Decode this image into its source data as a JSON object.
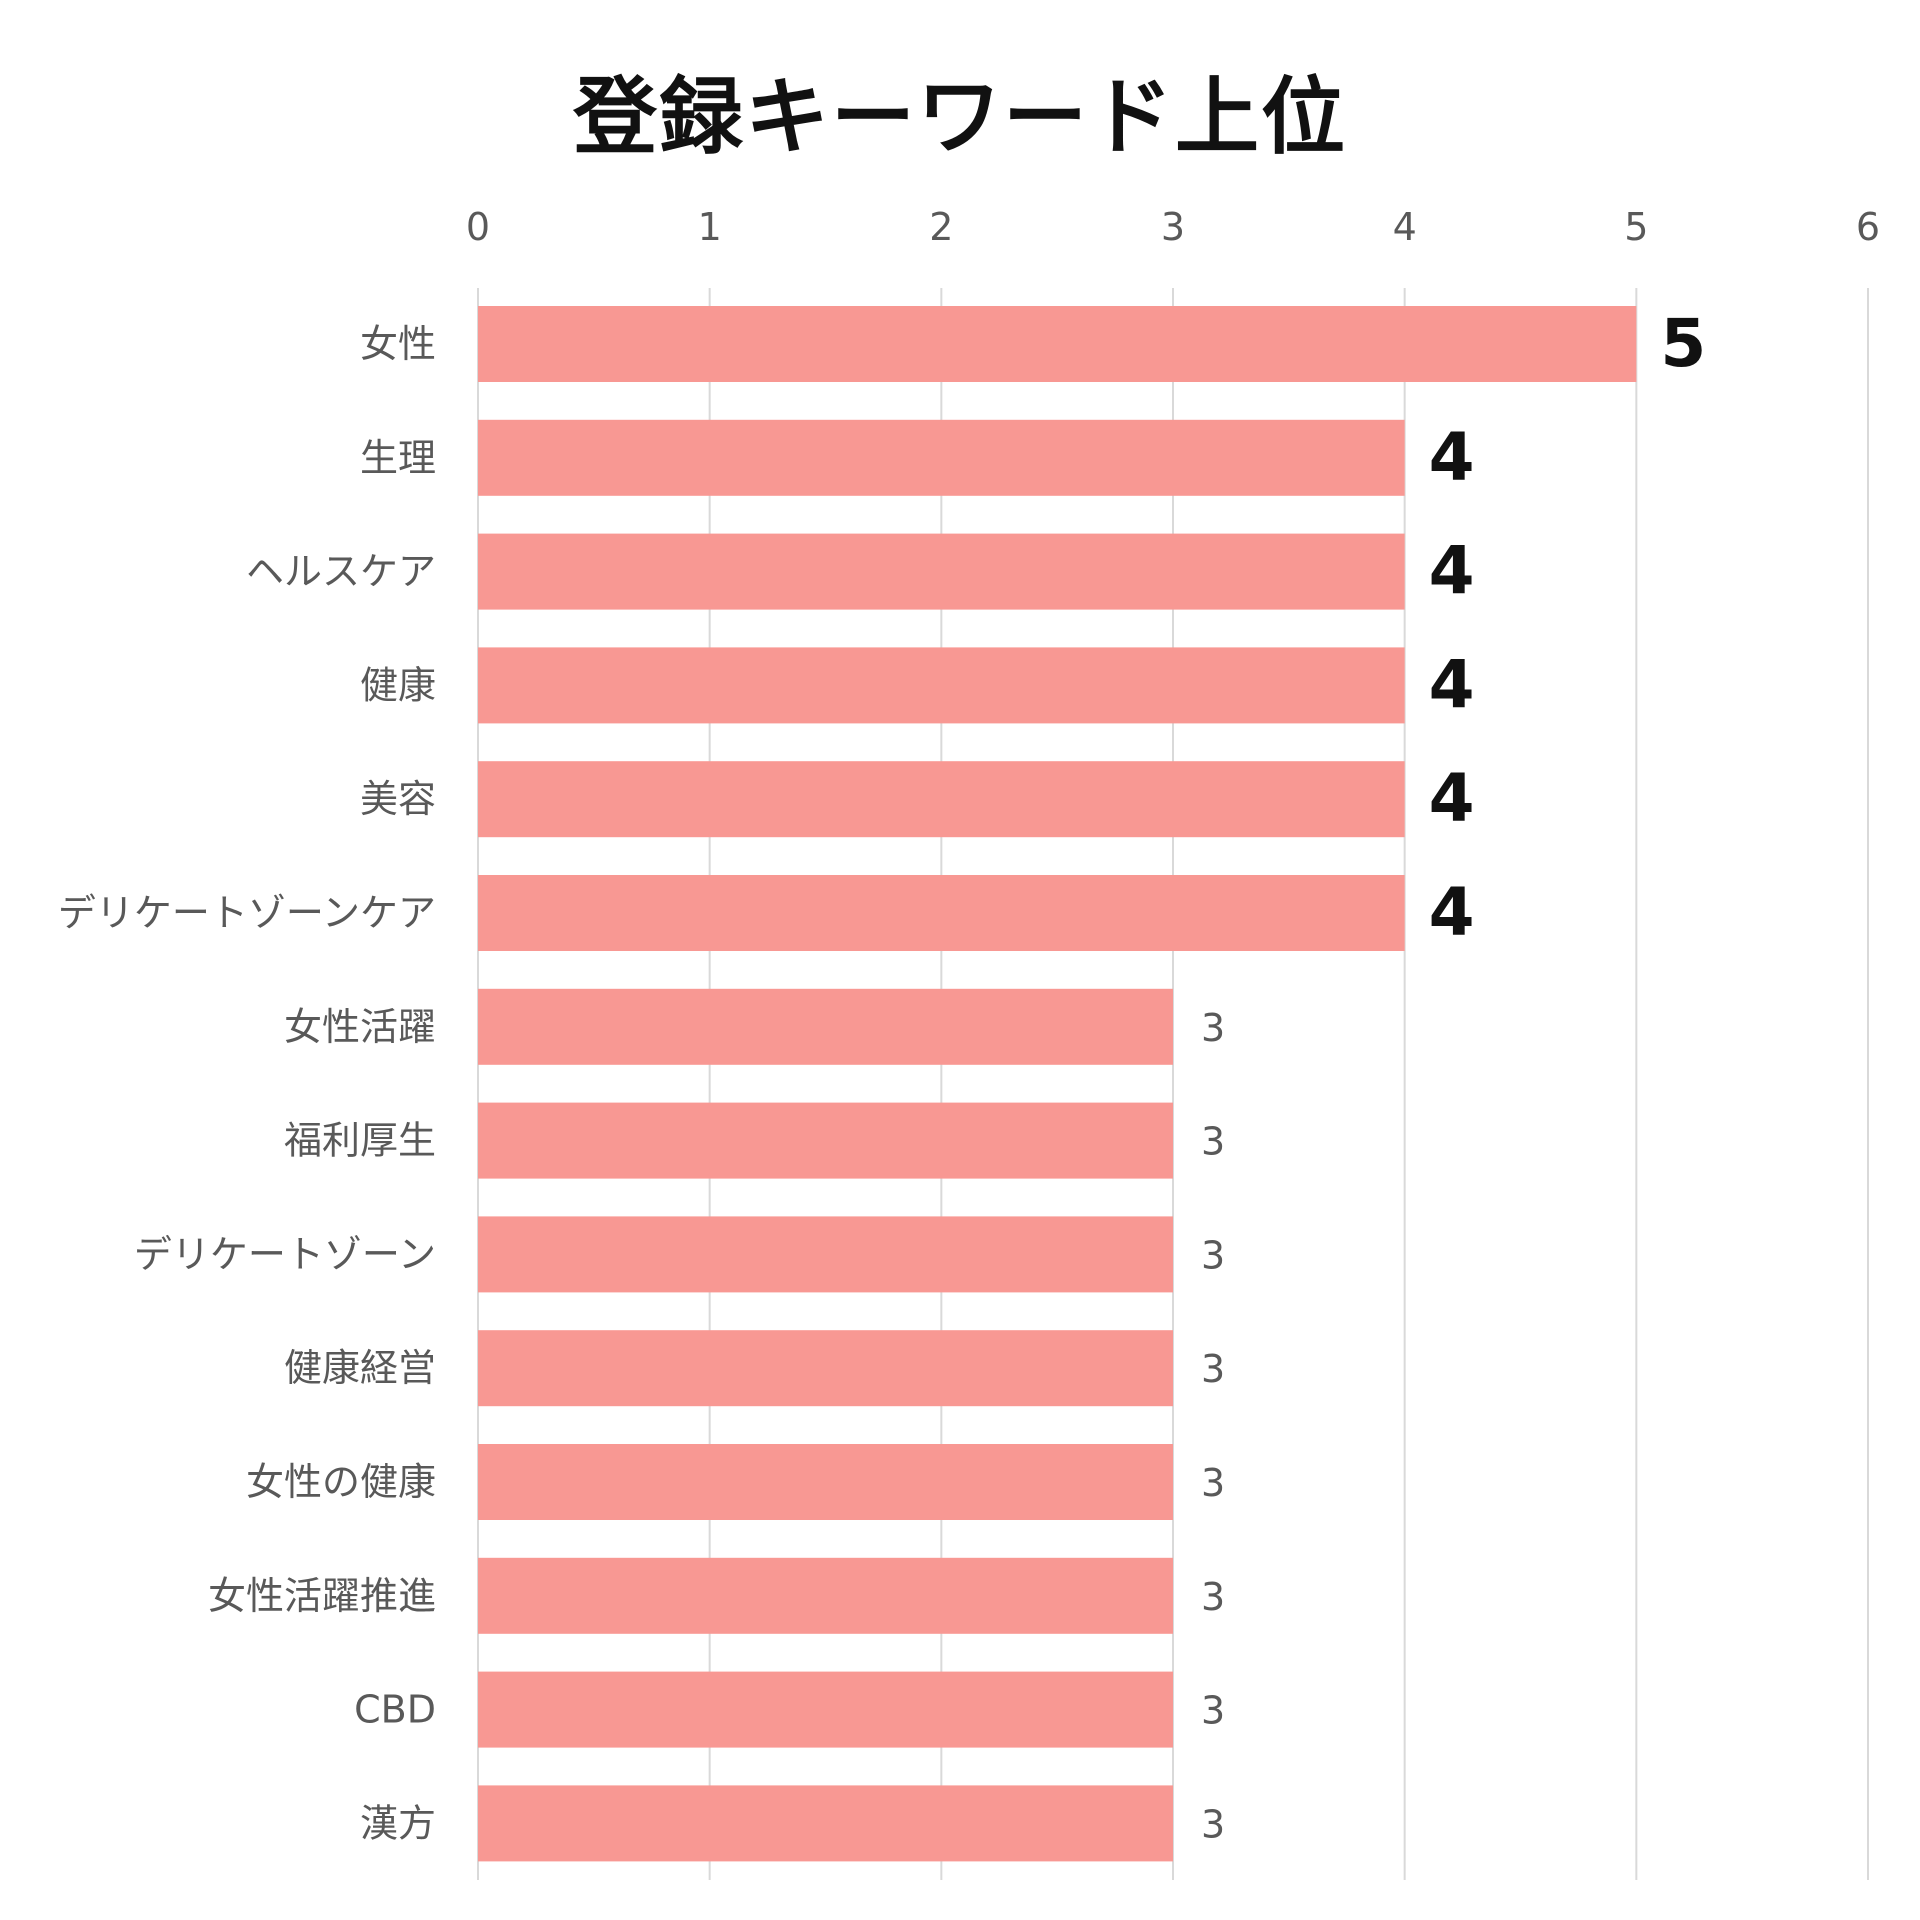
{
  "chart_data": {
    "type": "bar",
    "orientation": "horizontal",
    "title": "登録キーワード上位",
    "categories": [
      "女性",
      "生理",
      "ヘルスケア",
      "健康",
      "美容",
      "デリケートゾーンケア",
      "女性活躍",
      "福利厚生",
      "デリケートゾーン",
      "健康経営",
      "女性の健康",
      "女性活躍推進",
      "CBD",
      "漢方"
    ],
    "values": [
      5,
      4,
      4,
      4,
      4,
      4,
      3,
      3,
      3,
      3,
      3,
      3,
      3,
      3
    ],
    "xlim": [
      0,
      6
    ],
    "x_ticks": [
      "0",
      "1",
      "2",
      "3",
      "4",
      "5",
      "6"
    ],
    "x_axis_position": "top",
    "grid": true,
    "data_labels": true,
    "emphasized_values_above": 3,
    "colors": {
      "bar": "#F89893",
      "grid": "#D9D9D9",
      "category_text": "#595959",
      "tick_text": "#595959",
      "emphasis_label": "#111111",
      "normal_label": "#595959"
    }
  }
}
